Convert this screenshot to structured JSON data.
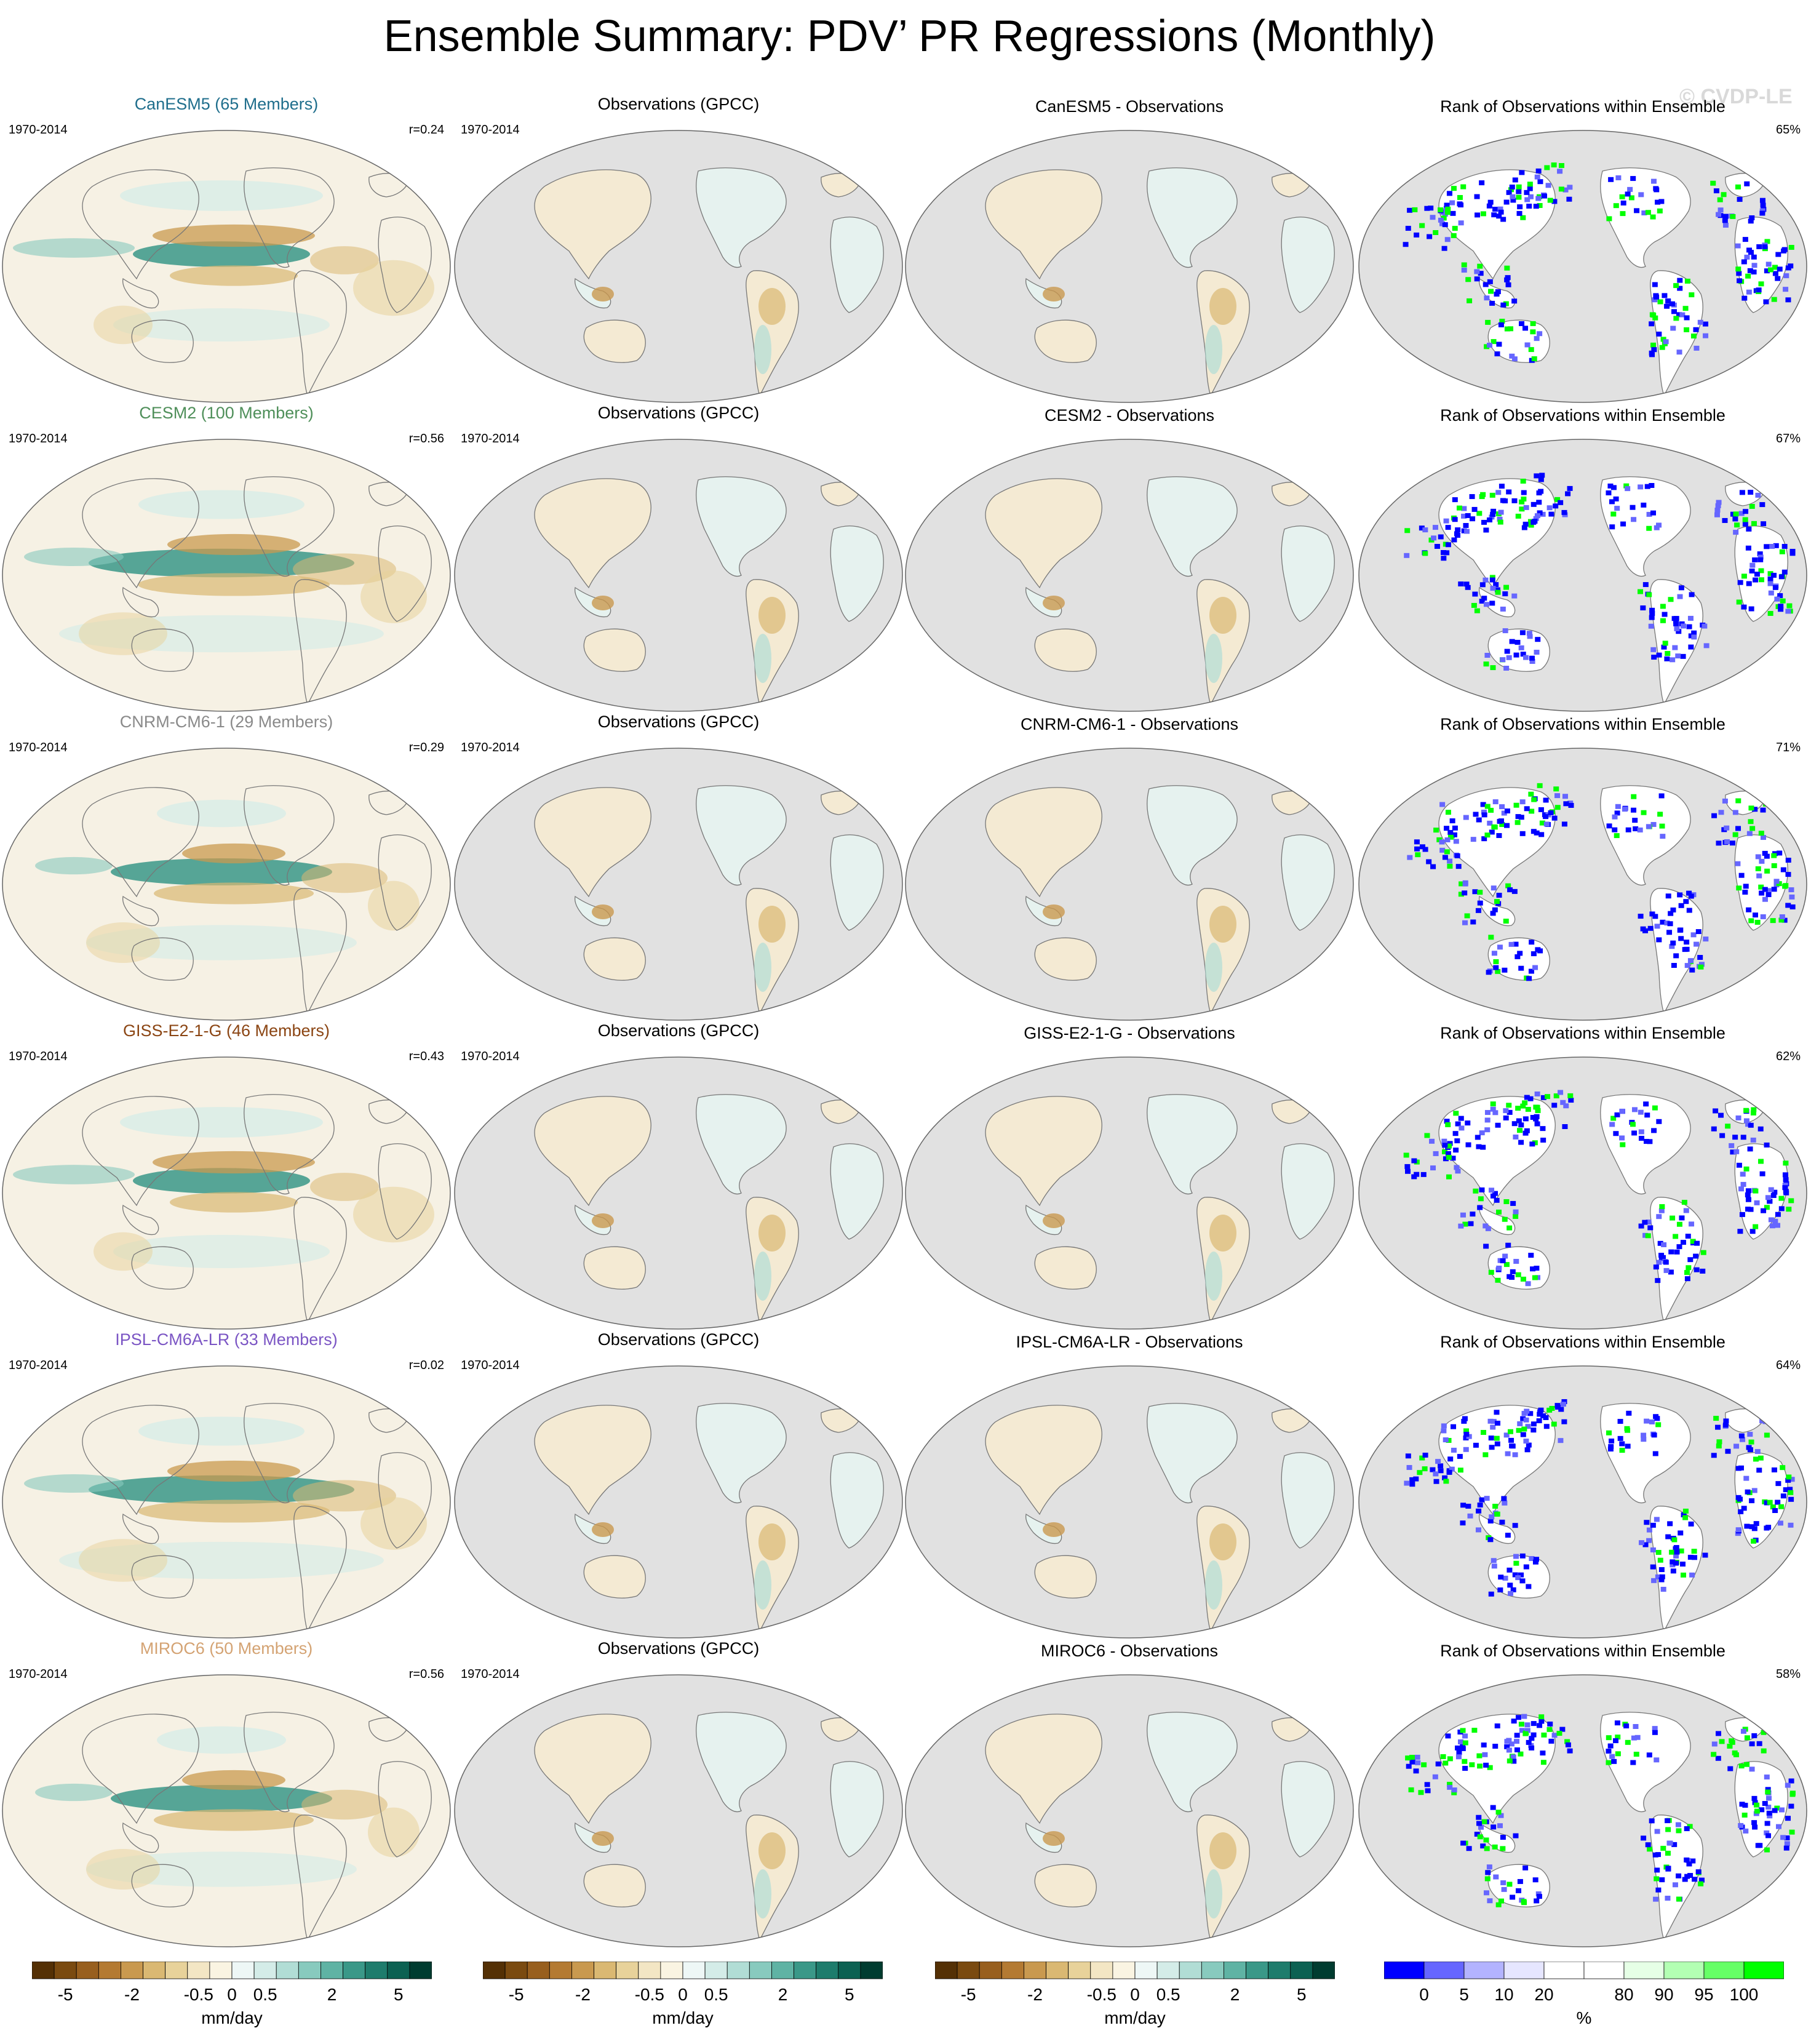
{
  "title": "Ensemble Summary: PDV’ PR Regressions (Monthly)",
  "copyright": "© CVDP-LE",
  "obs_title": "Observations (GPCC)",
  "rank_title": "Rank of Observations within Ensemble",
  "period": "1970-2014",
  "rows": [
    {
      "model": "CanESM5 (65 Members)",
      "color": "#1f6e8c",
      "corr": "r=0.24",
      "diff": "CanESM5 - Observations",
      "pct": "65%"
    },
    {
      "model": "CESM2 (100 Members)",
      "color": "#4f8f5a",
      "corr": "r=0.56",
      "diff": "CESM2 - Observations",
      "pct": "67%"
    },
    {
      "model": "CNRM-CM6-1 (29 Members)",
      "color": "#8a8a8a",
      "corr": "r=0.29",
      "diff": "CNRM-CM6-1 - Observations",
      "pct": "71%"
    },
    {
      "model": "GISS-E2-1-G (46 Members)",
      "color": "#8b4513",
      "corr": "r=0.43",
      "diff": "GISS-E2-1-G - Observations",
      "pct": "62%"
    },
    {
      "model": "IPSL-CM6A-LR (33 Members)",
      "color": "#7b55c4",
      "corr": "r=0.02",
      "diff": "IPSL-CM6A-LR - Observations",
      "pct": "64%"
    },
    {
      "model": "MIROC6 (50 Members)",
      "color": "#d4a373",
      "corr": "r=0.56",
      "diff": "MIROC6 - Observations",
      "pct": "58%"
    }
  ],
  "colorbar_pr": {
    "colors": [
      "#543005",
      "#7a4a10",
      "#985f1e",
      "#b47a32",
      "#c9994f",
      "#dab872",
      "#e8d29a",
      "#f3e6c4",
      "#faf4e2",
      "#eef7f6",
      "#d4ece8",
      "#b1ddd5",
      "#88cabe",
      "#5fb3a4",
      "#3a9888",
      "#1e7c6c",
      "#0c6152",
      "#003c30"
    ],
    "tick_labels": [
      "-5",
      "-2",
      "-0.5",
      "0",
      "0.5",
      "2",
      "5"
    ],
    "unit": "mm/day"
  },
  "colorbar_rank": {
    "colors": [
      "#0000ff",
      "#6666ff",
      "#b3b3ff",
      "#e6e6ff",
      "#ffffff",
      "#ffffff",
      "#e6ffe6",
      "#b3ffb3",
      "#66ff66",
      "#00ff00"
    ],
    "tick_labels": [
      "0",
      "5",
      "10",
      "20",
      "80",
      "90",
      "95",
      "100"
    ],
    "unit": "%"
  }
}
